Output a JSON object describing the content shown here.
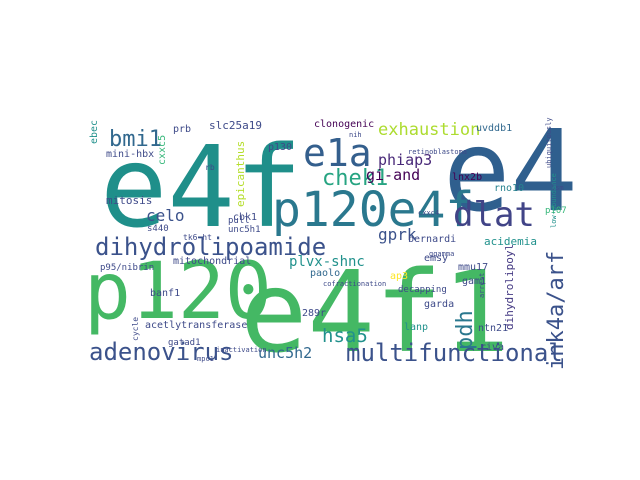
{
  "words": [
    {
      "text": "e4f1",
      "color": "#44b864"
    },
    {
      "text": "e4f",
      "color": "#1f8f8a"
    },
    {
      "text": "e4",
      "color": "#2f5f8e"
    },
    {
      "text": "p120",
      "color": "#44b864"
    },
    {
      "text": "p120e4f",
      "color": "#2a788e"
    },
    {
      "text": "e1a",
      "color": "#345f8d"
    },
    {
      "text": "dlat",
      "color": "#414487"
    },
    {
      "text": "dihydrolipoamide",
      "color": "#3b528b"
    },
    {
      "text": "adenovirus",
      "color": "#3b528b"
    },
    {
      "text": "multifunctional",
      "color": "#3b528b"
    },
    {
      "text": "chek1",
      "color": "#27a482"
    },
    {
      "text": "bmi1",
      "color": "#31688e"
    },
    {
      "text": "exhaustion",
      "color": "#addc30"
    },
    {
      "text": "ink4a/arf",
      "color": "#3b528b"
    },
    {
      "text": "pdh",
      "color": "#2a788e"
    },
    {
      "text": "hsa5",
      "color": "#21918c"
    },
    {
      "text": "unc5h2",
      "color": "#31688e"
    },
    {
      "text": "celo",
      "color": "#3b528b"
    },
    {
      "text": "gprk",
      "color": "#3b528b"
    },
    {
      "text": "phiap3",
      "color": "#482878"
    },
    {
      "text": "gi-and",
      "color": "#440154"
    },
    {
      "text": "plvx-shnc",
      "color": "#21918c"
    },
    {
      "text": "mitosis",
      "color": "#3e4a89"
    },
    {
      "text": "epicanthus",
      "color": "#b5de2b"
    },
    {
      "text": "cxxc5",
      "color": "#35b779"
    },
    {
      "text": "mini-hbx",
      "color": "#3e4a89"
    },
    {
      "text": "prb",
      "color": "#3e4a89"
    },
    {
      "text": "slc25a19",
      "color": "#3e4a89"
    },
    {
      "text": "p130",
      "color": "#3e4a89"
    },
    {
      "text": "clonogenic",
      "color": "#440154"
    },
    {
      "text": "uvddb1",
      "color": "#31688e"
    },
    {
      "text": "lnx2b",
      "color": "#440154"
    },
    {
      "text": "rno10",
      "color": "#26828e"
    },
    {
      "text": "p107",
      "color": "#35b779"
    },
    {
      "text": "acidemia",
      "color": "#21918c"
    },
    {
      "text": "dihydrolipoyl",
      "color": "#443983"
    },
    {
      "text": "mmu17",
      "color": "#3e4a89"
    },
    {
      "text": "gam1",
      "color": "#3e4a89"
    },
    {
      "text": "ntn21",
      "color": "#3e4a89"
    },
    {
      "text": "riva",
      "color": "#3e4a89"
    },
    {
      "text": "emsy",
      "color": "#3e4a89"
    },
    {
      "text": "ap3",
      "color": "#fde725"
    },
    {
      "text": "paolo",
      "color": "#31688e"
    },
    {
      "text": "garda",
      "color": "#3e4a89"
    },
    {
      "text": "decapping",
      "color": "#3e4a89"
    },
    {
      "text": "lanp",
      "color": "#21918c"
    },
    {
      "text": "289r",
      "color": "#3e4a89"
    },
    {
      "text": "acetlytransferase",
      "color": "#3e4a89"
    },
    {
      "text": "banf1",
      "color": "#3e4a89"
    },
    {
      "text": "gatad1",
      "color": "#3e4a89"
    },
    {
      "text": "p95/nibrin",
      "color": "#3e4a89"
    },
    {
      "text": "mitochondrial",
      "color": "#3e4a89"
    },
    {
      "text": "pull",
      "color": "#3e4a89"
    },
    {
      "text": "cbk1",
      "color": "#3e4a89"
    },
    {
      "text": "unc5h1",
      "color": "#3e4a89"
    },
    {
      "text": "s440",
      "color": "#3e4a89"
    },
    {
      "text": "tk6-ht",
      "color": "#3e4a89"
    },
    {
      "text": "bernardi",
      "color": "#3e4a89"
    },
    {
      "text": "ebec",
      "color": "#21918c"
    },
    {
      "text": "retinoblastoma",
      "color": "#3e4a89"
    },
    {
      "text": "nih",
      "color": "#3e4a89"
    },
    {
      "text": "cofractionation",
      "color": "#3e4a89"
    },
    {
      "text": "inactivation",
      "color": "#3e4a89"
    },
    {
      "text": "cycle",
      "color": "#3e4a89"
    },
    {
      "text": "mpc1",
      "color": "#3e4a89"
    },
    {
      "text": "cxxc4",
      "color": "#3e4a89"
    },
    {
      "text": "ggamma",
      "color": "#3e4a89"
    },
    {
      "text": "arrest",
      "color": "#3e4a89"
    },
    {
      "text": "low-abundance",
      "color": "#21918c"
    },
    {
      "text": "ubiquitously",
      "color": "#3e4a89"
    },
    {
      "text": "lsm",
      "color": "#3e4a89"
    },
    {
      "text": "rb",
      "color": "#3e4a89"
    }
  ]
}
